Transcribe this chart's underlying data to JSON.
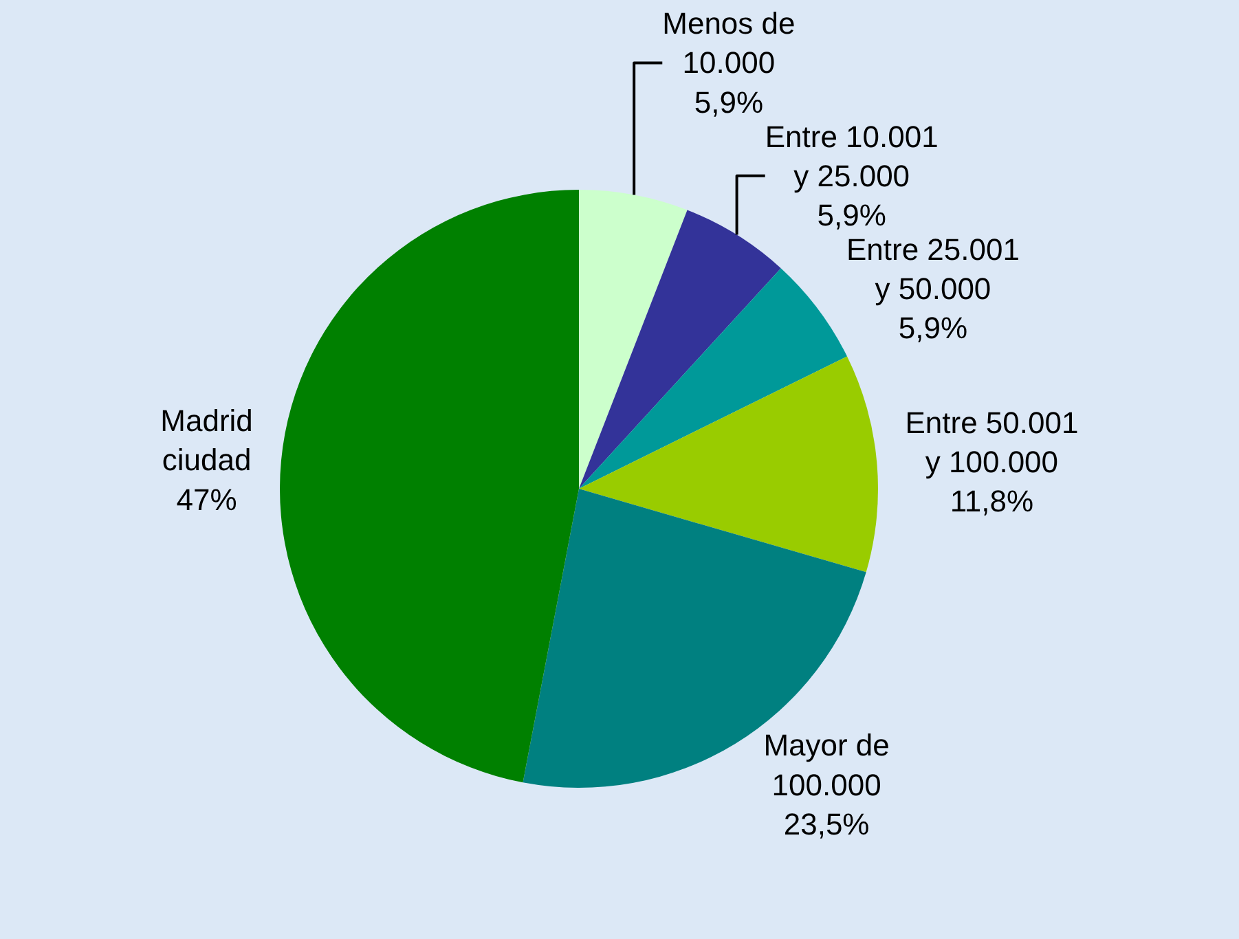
{
  "chart_data": {
    "type": "pie",
    "categories": [
      "Menos de\n10.000",
      "Entre 10.001\ny 25.000",
      "Entre 25.001\ny 50.000",
      "Entre 50.001\ny 100.000",
      "Mayor de\n100.000",
      "Madrid\nciudad"
    ],
    "values": [
      5.9,
      5.9,
      5.9,
      11.8,
      23.5,
      47
    ],
    "value_labels": [
      "5,9%",
      "5,9%",
      "5,9%",
      "11,8%",
      "23,5%",
      "47%"
    ],
    "colors": [
      "#ccffcc",
      "#333399",
      "#009999",
      "#99cc00",
      "#008080",
      "#008000"
    ],
    "legend": false
  }
}
